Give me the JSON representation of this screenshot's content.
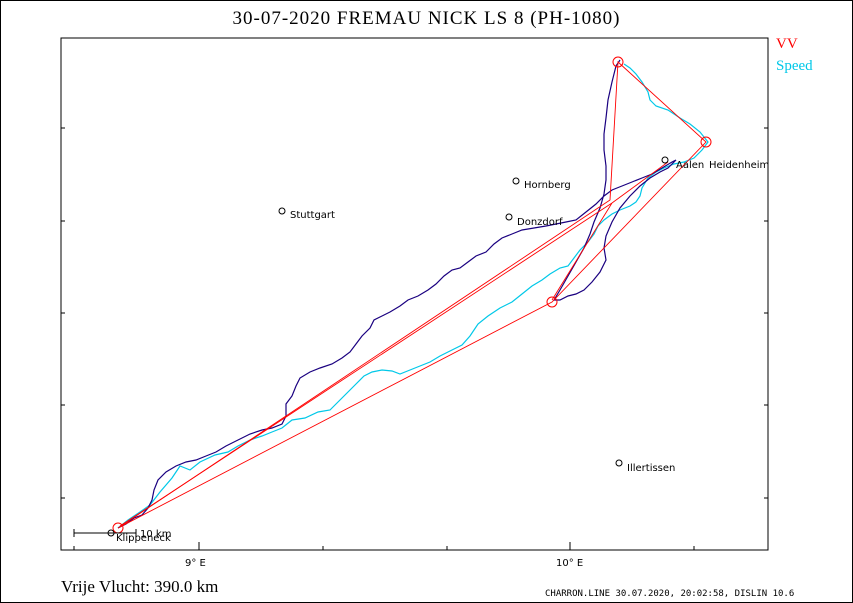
{
  "title": "30-07-2020    FREMAU NICK    LS 8 (PH-1080)",
  "legend": {
    "vv": "VV",
    "speed": "Speed"
  },
  "footer": {
    "distance": "Vrije Vlucht:  390.0 km",
    "credit": "CHARRON.LINE 30.07.2020, 20:02:58, DISLIN 10.6"
  },
  "axis": {
    "x_ticks": [
      "9° E",
      "10° E"
    ]
  },
  "scale_bar": "10 km",
  "towns": {
    "stuttgart": "Stuttgart",
    "hornberg": "Hornberg",
    "donzdorf": "Donzdorf",
    "aalen": "Aalen",
    "heidenheim": "Heidenheim",
    "illertissen": "Illertissen",
    "klippeneck": "Klippeneck"
  },
  "colors": {
    "task": "#ff0000",
    "track": "#1a0080",
    "speed": "#00c8e8"
  }
}
